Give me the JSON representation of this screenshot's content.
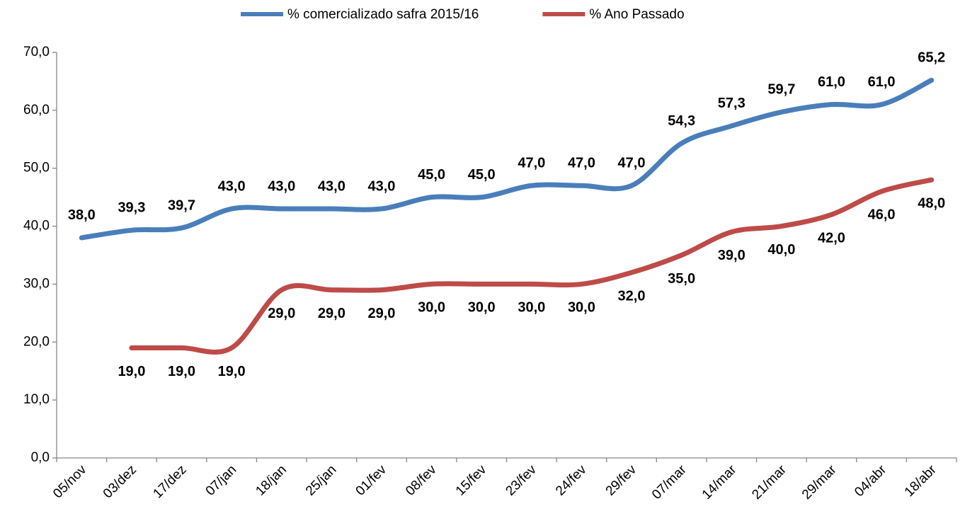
{
  "chart_data": {
    "type": "line",
    "categories": [
      "05/nov",
      "03/dez",
      "17/dez",
      "07/jan",
      "18/jan",
      "25/jan",
      "01/fev",
      "08/fev",
      "15/fev",
      "23/fev",
      "24/fev",
      "29/fev",
      "07/mar",
      "14/mar",
      "21/mar",
      "29/mar",
      "04/abr",
      "18/abr"
    ],
    "series": [
      {
        "name": "% comercializado safra 2015/16",
        "color": "#4a7ebb",
        "values": [
          38.0,
          39.3,
          39.7,
          43.0,
          43.0,
          43.0,
          43.0,
          45.0,
          45.0,
          47.0,
          47.0,
          47.0,
          54.3,
          57.3,
          59.7,
          61.0,
          61.0,
          65.2
        ],
        "value_labels": [
          "38,0",
          "39,3",
          "39,7",
          "43,0",
          "43,0",
          "43,0",
          "43,0",
          "45,0",
          "45,0",
          "47,0",
          "47,0",
          "47,0",
          "54,3",
          "57,3",
          "59,7",
          "61,0",
          "61,0",
          "65,2"
        ]
      },
      {
        "name": "% Ano Passado",
        "color": "#be4b48",
        "values": [
          null,
          19.0,
          19.0,
          19.0,
          29.0,
          29.0,
          29.0,
          30.0,
          30.0,
          30.0,
          30.0,
          32.0,
          35.0,
          39.0,
          40.0,
          42.0,
          46.0,
          48.0
        ],
        "value_labels": [
          null,
          "19,0",
          "19,0",
          "19,0",
          "29,0",
          "29,0",
          "29,0",
          "30,0",
          "30,0",
          "30,0",
          "30,0",
          "32,0",
          "35,0",
          "39,0",
          "40,0",
          "42,0",
          "46,0",
          "48,0"
        ]
      }
    ],
    "ylim": [
      0,
      70
    ],
    "yticks": [
      {
        "value": 0,
        "label": "0,0"
      },
      {
        "value": 10,
        "label": "10,0"
      },
      {
        "value": 20,
        "label": "20,0"
      },
      {
        "value": 30,
        "label": "30,0"
      },
      {
        "value": 40,
        "label": "40,0"
      },
      {
        "value": 50,
        "label": "50,0"
      },
      {
        "value": 60,
        "label": "60,0"
      },
      {
        "value": 70,
        "label": "70,0"
      }
    ],
    "grid": false,
    "legend": "top"
  }
}
